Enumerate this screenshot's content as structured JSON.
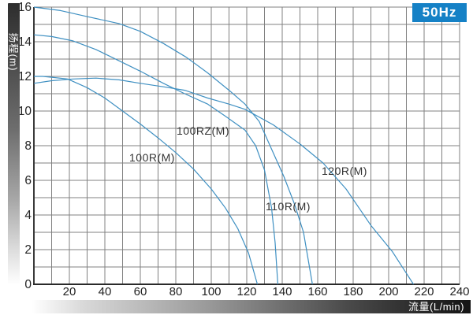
{
  "frequency_badge": "50Hz",
  "badge_color": "#1581c6",
  "grid_color": "#808080",
  "axis_color": "#3a3a3a",
  "curve_color": "#3f90c2",
  "chart_data": {
    "type": "line",
    "title": "",
    "xlabel": "流量(L/min)",
    "ylabel": "扬程(m)",
    "xlim": [
      0,
      240
    ],
    "ylim": [
      0,
      16
    ],
    "x_tick_step": 20,
    "y_tick_step": 2,
    "x_grid_step": 10,
    "y_grid_step": 1,
    "grid": "on",
    "legend_position": "none",
    "x_ticks": [
      20,
      40,
      60,
      80,
      100,
      120,
      140,
      160,
      180,
      200,
      220,
      240
    ],
    "y_ticks": [
      0,
      2,
      4,
      6,
      8,
      10,
      12,
      14,
      16
    ],
    "series": [
      {
        "name": "100R(M)",
        "points": [
          [
            0,
            12.0
          ],
          [
            5,
            12.0
          ],
          [
            10,
            11.95
          ],
          [
            19,
            11.85
          ],
          [
            30,
            11.35
          ],
          [
            40,
            10.75
          ],
          [
            50,
            10.0
          ],
          [
            60,
            9.25
          ],
          [
            70,
            8.45
          ],
          [
            80,
            7.6
          ],
          [
            90,
            6.65
          ],
          [
            100,
            5.5
          ],
          [
            108,
            4.4
          ],
          [
            115,
            3.2
          ],
          [
            121,
            1.8
          ],
          [
            126,
            0
          ]
        ]
      },
      {
        "name": "100RZ(M)",
        "points": [
          [
            0,
            14.4
          ],
          [
            10,
            14.3
          ],
          [
            22,
            14.05
          ],
          [
            35,
            13.55
          ],
          [
            48,
            12.9
          ],
          [
            60,
            12.3
          ],
          [
            73,
            11.6
          ],
          [
            85,
            11.0
          ],
          [
            98,
            10.4
          ],
          [
            108,
            9.7
          ],
          [
            119,
            8.9
          ],
          [
            125,
            8.0
          ],
          [
            130,
            6.6
          ],
          [
            134,
            4.4
          ],
          [
            136,
            2.4
          ],
          [
            137.5,
            0
          ]
        ]
      },
      {
        "name": "110R(M)",
        "points": [
          [
            0,
            16.0
          ],
          [
            15,
            15.8
          ],
          [
            30,
            15.45
          ],
          [
            48,
            15.05
          ],
          [
            60,
            14.6
          ],
          [
            73,
            13.9
          ],
          [
            86,
            13.1
          ],
          [
            98,
            12.2
          ],
          [
            110,
            11.2
          ],
          [
            119,
            10.4
          ],
          [
            127,
            9.4
          ],
          [
            134,
            7.8
          ],
          [
            141,
            6.2
          ],
          [
            147,
            4.6
          ],
          [
            152,
            3.0
          ],
          [
            157,
            0
          ]
        ]
      },
      {
        "name": "120R(M)",
        "points": [
          [
            0,
            11.6
          ],
          [
            10,
            11.75
          ],
          [
            22,
            11.85
          ],
          [
            35,
            11.9
          ],
          [
            48,
            11.8
          ],
          [
            60,
            11.6
          ],
          [
            73,
            11.4
          ],
          [
            85,
            11.2
          ],
          [
            98,
            10.75
          ],
          [
            110,
            10.4
          ],
          [
            119,
            10.1
          ],
          [
            135,
            9.2
          ],
          [
            150,
            8.1
          ],
          [
            163,
            7.0
          ],
          [
            176,
            5.5
          ],
          [
            190,
            3.4
          ],
          [
            202,
            1.9
          ],
          [
            214,
            0
          ]
        ]
      }
    ]
  }
}
